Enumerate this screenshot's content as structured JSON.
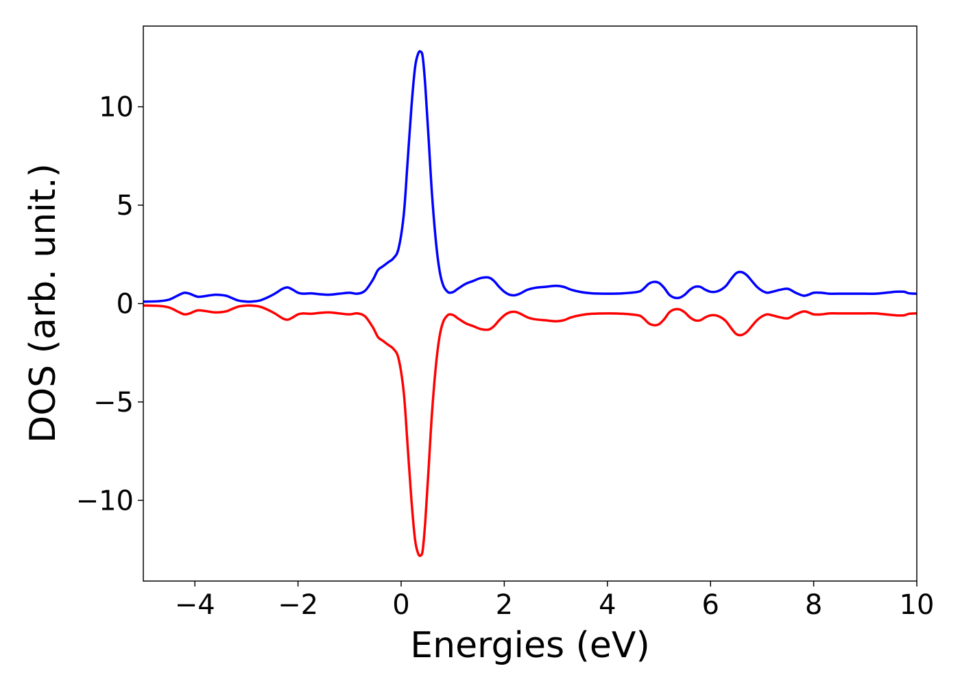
{
  "chart_data": {
    "type": "line",
    "title": "",
    "xlabel": "Energies (eV)",
    "ylabel": "DOS (arb. unit.)",
    "xlim": [
      -5,
      10
    ],
    "ylim": [
      -14.1,
      14.1
    ],
    "xticks": [
      -4,
      -2,
      0,
      2,
      4,
      6,
      8,
      10
    ],
    "xtick_labels": [
      "−4",
      "−2",
      "0",
      "2",
      "4",
      "6",
      "8",
      "10"
    ],
    "yticks": [
      10,
      5,
      0,
      -5,
      -10
    ],
    "ytick_labels": [
      "10",
      "5",
      "0",
      "−5",
      "−10"
    ],
    "grid": false,
    "legend": "none",
    "series": [
      {
        "color": "#0000ff",
        "x": [
          -5.0,
          -4.7,
          -4.5,
          -4.3,
          -4.2,
          -4.1,
          -3.95,
          -3.8,
          -3.6,
          -3.4,
          -3.3,
          -3.15,
          -3.0,
          -2.9,
          -2.75,
          -2.6,
          -2.45,
          -2.3,
          -2.2,
          -2.1,
          -2.0,
          -1.9,
          -1.75,
          -1.6,
          -1.4,
          -1.2,
          -1.0,
          -0.85,
          -0.7,
          -0.55,
          -0.45,
          -0.35,
          -0.25,
          -0.15,
          -0.05,
          0.05,
          0.12,
          0.2,
          0.27,
          0.33,
          0.38,
          0.42,
          0.47,
          0.53,
          0.6,
          0.68,
          0.75,
          0.82,
          0.9,
          0.95,
          1.02,
          1.1,
          1.25,
          1.4,
          1.55,
          1.7,
          1.8,
          1.9,
          2.0,
          2.1,
          2.2,
          2.3,
          2.45,
          2.6,
          2.8,
          3.0,
          3.15,
          3.3,
          3.5,
          3.7,
          4.0,
          4.3,
          4.6,
          4.7,
          4.8,
          4.9,
          5.0,
          5.1,
          5.2,
          5.3,
          5.4,
          5.5,
          5.6,
          5.7,
          5.8,
          5.9,
          6.0,
          6.1,
          6.2,
          6.3,
          6.4,
          6.5,
          6.6,
          6.7,
          6.8,
          6.9,
          7.0,
          7.1,
          7.2,
          7.35,
          7.5,
          7.65,
          7.8,
          7.9,
          8.0,
          8.15,
          8.3,
          8.45,
          8.6,
          8.8,
          9.0,
          9.2,
          9.4,
          9.6,
          9.75,
          9.85,
          10.0
        ],
        "y": [
          0.1,
          0.12,
          0.2,
          0.45,
          0.55,
          0.5,
          0.35,
          0.38,
          0.45,
          0.4,
          0.3,
          0.15,
          0.1,
          0.1,
          0.15,
          0.3,
          0.5,
          0.75,
          0.82,
          0.7,
          0.55,
          0.5,
          0.52,
          0.48,
          0.45,
          0.5,
          0.55,
          0.5,
          0.65,
          1.2,
          1.7,
          1.9,
          2.1,
          2.3,
          2.8,
          4.5,
          7.0,
          10.0,
          12.0,
          12.7,
          12.8,
          12.5,
          11.0,
          8.5,
          5.5,
          3.0,
          1.6,
          0.9,
          0.6,
          0.55,
          0.6,
          0.75,
          1.0,
          1.15,
          1.3,
          1.32,
          1.15,
          0.85,
          0.6,
          0.45,
          0.42,
          0.5,
          0.7,
          0.8,
          0.85,
          0.9,
          0.85,
          0.7,
          0.58,
          0.52,
          0.5,
          0.52,
          0.6,
          0.75,
          1.0,
          1.1,
          1.05,
          0.8,
          0.45,
          0.3,
          0.3,
          0.45,
          0.7,
          0.85,
          0.85,
          0.7,
          0.6,
          0.6,
          0.7,
          0.9,
          1.25,
          1.55,
          1.6,
          1.45,
          1.15,
          0.85,
          0.65,
          0.55,
          0.6,
          0.7,
          0.75,
          0.55,
          0.4,
          0.45,
          0.55,
          0.55,
          0.5,
          0.5,
          0.5,
          0.5,
          0.5,
          0.5,
          0.55,
          0.6,
          0.6,
          0.52,
          0.5
        ]
      },
      {
        "color": "#ff0000",
        "x": [
          -5.0,
          -4.7,
          -4.5,
          -4.3,
          -4.2,
          -4.1,
          -3.95,
          -3.8,
          -3.6,
          -3.4,
          -3.3,
          -3.15,
          -3.0,
          -2.9,
          -2.75,
          -2.6,
          -2.45,
          -2.3,
          -2.2,
          -2.1,
          -2.0,
          -1.9,
          -1.75,
          -1.6,
          -1.4,
          -1.2,
          -1.0,
          -0.85,
          -0.7,
          -0.55,
          -0.45,
          -0.35,
          -0.25,
          -0.15,
          -0.05,
          0.05,
          0.12,
          0.2,
          0.27,
          0.33,
          0.38,
          0.42,
          0.47,
          0.53,
          0.6,
          0.68,
          0.75,
          0.82,
          0.9,
          0.95,
          1.02,
          1.1,
          1.25,
          1.4,
          1.55,
          1.7,
          1.8,
          1.9,
          2.0,
          2.1,
          2.2,
          2.3,
          2.45,
          2.6,
          2.8,
          3.0,
          3.15,
          3.3,
          3.5,
          3.7,
          4.0,
          4.3,
          4.6,
          4.7,
          4.8,
          4.9,
          5.0,
          5.1,
          5.2,
          5.3,
          5.4,
          5.5,
          5.6,
          5.7,
          5.8,
          5.9,
          6.0,
          6.1,
          6.2,
          6.3,
          6.4,
          6.5,
          6.6,
          6.7,
          6.8,
          6.9,
          7.0,
          7.1,
          7.2,
          7.35,
          7.5,
          7.65,
          7.8,
          7.9,
          8.0,
          8.15,
          8.3,
          8.45,
          8.6,
          8.8,
          9.0,
          9.2,
          9.4,
          9.6,
          9.75,
          9.85,
          10.0
        ],
        "y": [
          -0.1,
          -0.12,
          -0.2,
          -0.45,
          -0.55,
          -0.5,
          -0.35,
          -0.38,
          -0.45,
          -0.4,
          -0.3,
          -0.15,
          -0.1,
          -0.1,
          -0.15,
          -0.3,
          -0.5,
          -0.75,
          -0.82,
          -0.7,
          -0.55,
          -0.5,
          -0.52,
          -0.48,
          -0.45,
          -0.5,
          -0.55,
          -0.5,
          -0.65,
          -1.2,
          -1.7,
          -1.9,
          -2.1,
          -2.3,
          -2.8,
          -4.5,
          -7.0,
          -10.0,
          -12.0,
          -12.7,
          -12.8,
          -12.5,
          -11.0,
          -8.5,
          -5.5,
          -3.0,
          -1.6,
          -0.9,
          -0.6,
          -0.55,
          -0.6,
          -0.75,
          -1.0,
          -1.15,
          -1.3,
          -1.32,
          -1.15,
          -0.85,
          -0.6,
          -0.45,
          -0.42,
          -0.5,
          -0.7,
          -0.8,
          -0.85,
          -0.9,
          -0.85,
          -0.7,
          -0.58,
          -0.52,
          -0.5,
          -0.52,
          -0.6,
          -0.75,
          -1.0,
          -1.1,
          -1.05,
          -0.8,
          -0.45,
          -0.3,
          -0.3,
          -0.45,
          -0.7,
          -0.85,
          -0.85,
          -0.7,
          -0.6,
          -0.6,
          -0.7,
          -0.9,
          -1.25,
          -1.55,
          -1.6,
          -1.45,
          -1.15,
          -0.85,
          -0.65,
          -0.55,
          -0.6,
          -0.7,
          -0.75,
          -0.55,
          -0.4,
          -0.45,
          -0.55,
          -0.55,
          -0.5,
          -0.5,
          -0.5,
          -0.5,
          -0.5,
          -0.5,
          -0.55,
          -0.6,
          -0.6,
          -0.52,
          -0.5
        ]
      }
    ]
  }
}
